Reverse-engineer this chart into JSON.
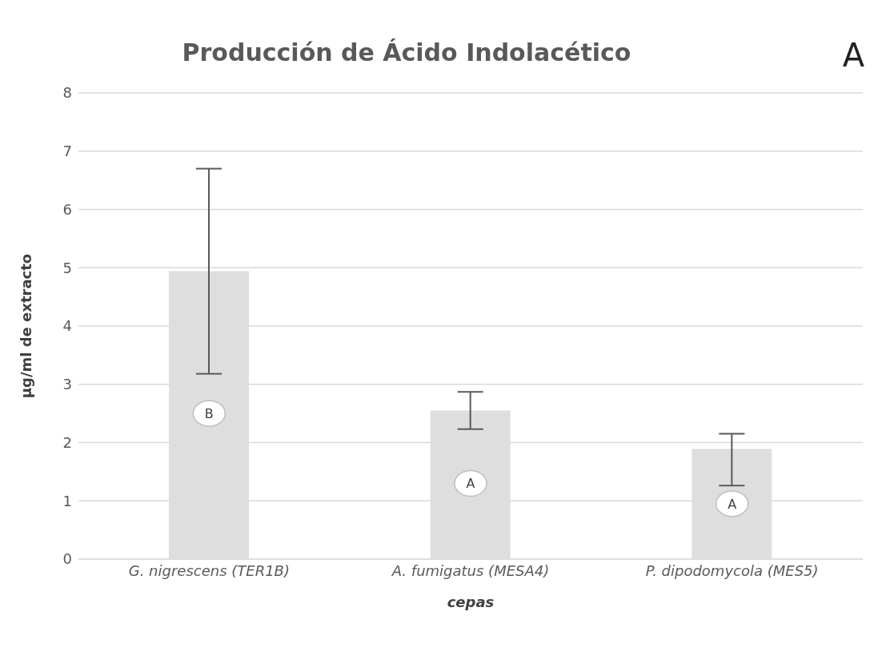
{
  "chart_data": {
    "type": "bar",
    "title": "Producción de Ácido Indolacético",
    "xlabel": "cepas",
    "ylabel": "µg/ml de extracto",
    "categories": [
      "G. nigrescens (TER1B)",
      "A. fumigatus (MESA4)",
      "P. dipodomycola (MES5)"
    ],
    "values": [
      4.94,
      2.55,
      1.89
    ],
    "color": "#dedede",
    "errors": [
      1.76,
      0.32,
      [
        1.26,
        2.15
      ]
    ],
    "ylim": [
      0,
      8
    ],
    "yticks": [
      0,
      1,
      2,
      3,
      4,
      5,
      6,
      7,
      8
    ],
    "grid": "y",
    "annotations": [
      {
        "text": "B",
        "x": "G. nigrescens (TER1B)",
        "y": 2.5
      },
      {
        "text": "A",
        "x": "A. fumigatus (MESA4)",
        "y": 1.3
      },
      {
        "text": "A",
        "x": "P. dipodomycola (MES5)",
        "y": 0.95
      },
      "A"
    ]
  }
}
